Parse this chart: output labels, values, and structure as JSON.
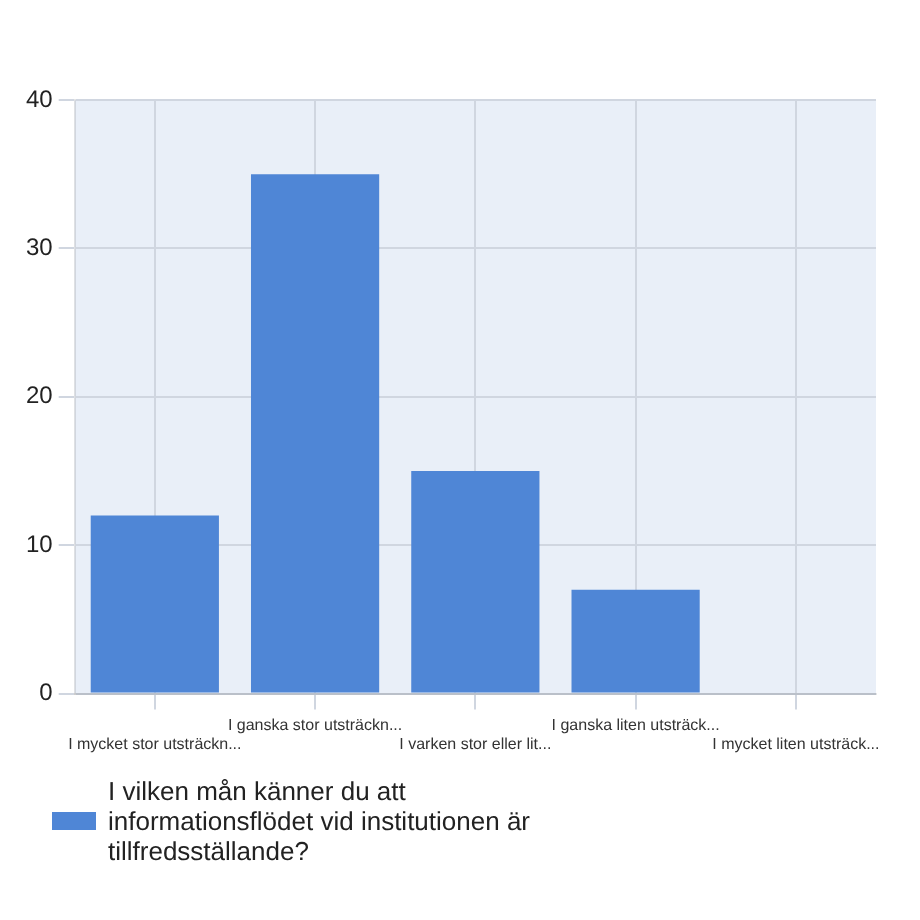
{
  "chart_data": {
    "type": "bar",
    "categories": [
      "I mycket stor utsträckn...",
      "I ganska stor utsträckn...",
      "I varken stor eller lit...",
      "I ganska liten utsträck...",
      "I mycket liten utsträck..."
    ],
    "series": [
      {
        "name": "I vilken mån känner du att informationsflödet vid institutionen är tillfredsställande?",
        "color": "#4f86d6",
        "values": [
          12,
          35,
          15,
          7,
          0
        ]
      }
    ],
    "ylim": [
      0,
      40
    ],
    "yticks": [
      0,
      10,
      20,
      30,
      40
    ],
    "grid": true,
    "legend": "bottom left"
  }
}
